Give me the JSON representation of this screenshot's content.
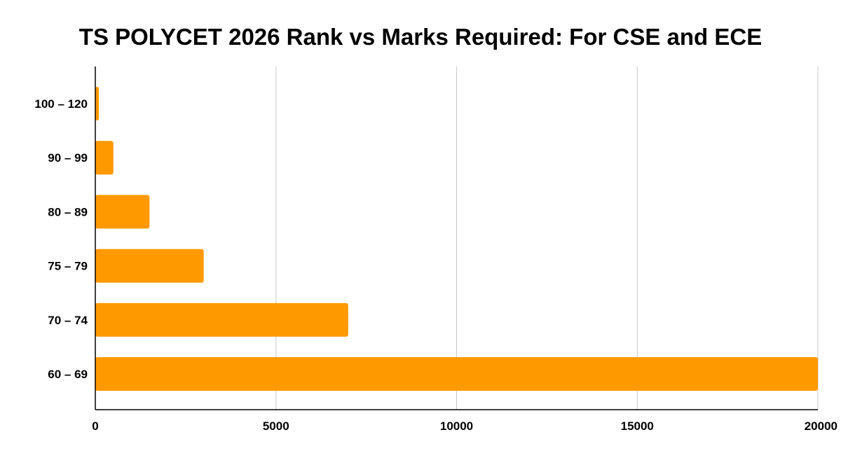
{
  "chart_data": {
    "type": "bar",
    "orientation": "horizontal",
    "title": "TS POLYCET 2026 Rank vs Marks Required: For CSE and ECE",
    "xlabel": "",
    "ylabel": "",
    "categories": [
      "100 – 120",
      "90 – 99",
      "80 – 89",
      "75 – 79",
      "70 – 74",
      "60 – 69"
    ],
    "values": [
      100,
      500,
      1500,
      3000,
      7000,
      20000
    ],
    "xlim": [
      0,
      20000
    ],
    "xticks": [
      0,
      5000,
      10000,
      15000,
      20000
    ],
    "xtick_labels": [
      "0",
      "5000",
      "10000",
      "15000",
      "20000"
    ],
    "grid": "vertical",
    "legend": "none",
    "bar_color": "#FF9900"
  }
}
